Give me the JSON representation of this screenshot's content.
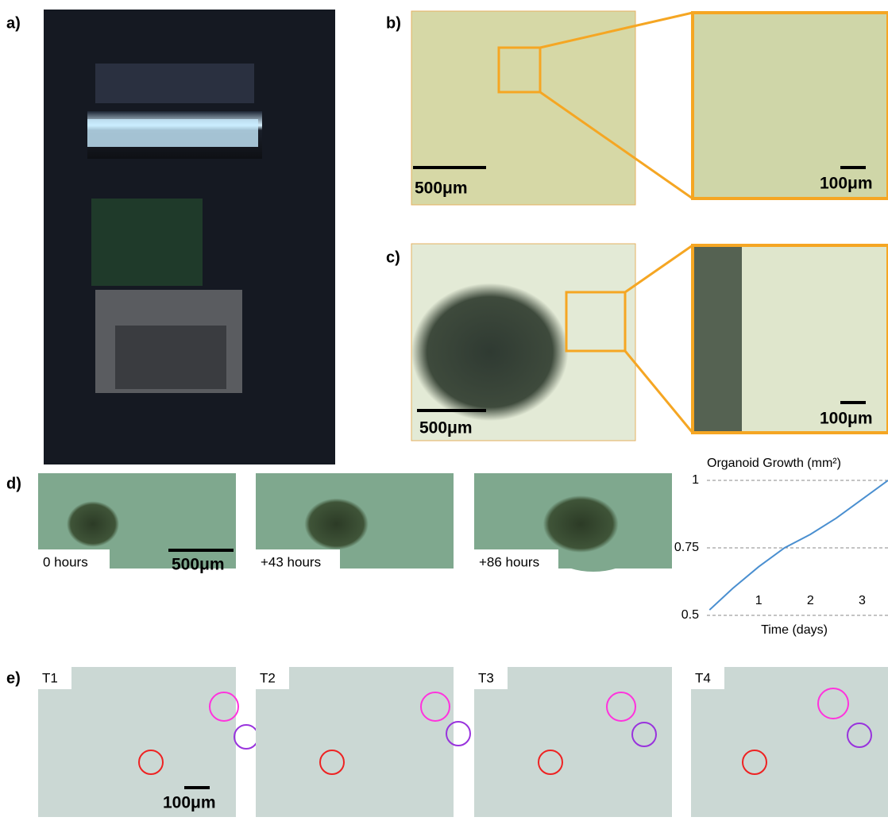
{
  "panels": {
    "a": {
      "label": "a)"
    },
    "b": {
      "label": "b)",
      "scale_main": "500μm",
      "scale_zoom": "100μm"
    },
    "c": {
      "label": "c)",
      "scale_main": "500μm",
      "scale_zoom": "100μm"
    },
    "d": {
      "label": "d)",
      "frames": [
        "0 hours",
        "+43 hours",
        "+86 hours"
      ],
      "scale": "500μm"
    },
    "e": {
      "label": "e)",
      "frames": [
        "T1",
        "T2",
        "T3",
        "T4"
      ],
      "scale": "100μm"
    }
  },
  "chart_data": {
    "type": "line",
    "title": "Organoid Growth (mm²)",
    "x_label": "Time (days)",
    "x": [
      0.05,
      0.5,
      1,
      1.5,
      2,
      2.5,
      3,
      3.5
    ],
    "series": [
      {
        "color": "#4a8fd0",
        "values": [
          0.52,
          0.6,
          0.68,
          0.75,
          0.8,
          0.86,
          0.93,
          1.0
        ]
      }
    ],
    "xlim": [
      0,
      3.5
    ],
    "ylim": [
      0.5,
      1
    ],
    "xticks": [
      1,
      2,
      3
    ],
    "yticks": [
      0.5,
      0.75,
      1
    ],
    "grid": true
  }
}
